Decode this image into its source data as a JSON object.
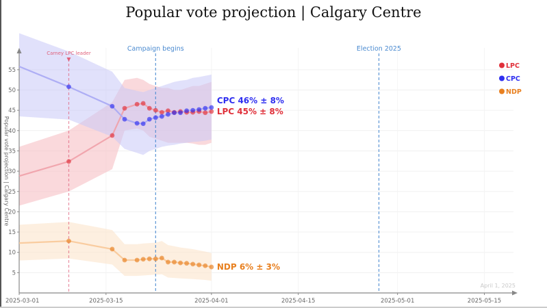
{
  "chart_data": {
    "type": "line",
    "title": "Popular vote projection | Calgary Centre",
    "xlabel": "",
    "ylabel": "Popular vote projection | Calgary Centre",
    "x_range": [
      "2025-03-01",
      "2025-05-20"
    ],
    "ylim": [
      0,
      58
    ],
    "y_ticks": [
      5,
      10,
      15,
      20,
      25,
      30,
      35,
      40,
      45,
      50,
      55
    ],
    "x_ticks": [
      "2025-03-01",
      "2025-03-15",
      "2025-04-01",
      "2025-04-15",
      "2025-05-01",
      "2025-05-15"
    ],
    "grid": true,
    "legend_position": "top-right",
    "annotations": [
      {
        "date": "2025-03-09",
        "label": "Carney LPC leader",
        "color": "#e0607a"
      },
      {
        "date": "2025-03-23",
        "label": "Campaign begins",
        "color": "#4a8ad0"
      },
      {
        "date": "2025-04-28",
        "label": "Election 2025",
        "color": "#4a8ad0"
      }
    ],
    "watermark": "April 1, 2025",
    "dates": [
      "2025-03-01",
      "2025-03-09",
      "2025-03-16",
      "2025-03-18",
      "2025-03-20",
      "2025-03-21",
      "2025-03-22",
      "2025-03-23",
      "2025-03-24",
      "2025-03-25",
      "2025-03-26",
      "2025-03-27",
      "2025-03-28",
      "2025-03-29",
      "2025-03-30",
      "2025-03-31",
      "2025-04-01"
    ],
    "series": [
      {
        "name": "LPC",
        "color": "#e0303a",
        "line_color": "#f0a0a8",
        "band_color": "#f6c0c4",
        "end_label": "LPC 45% ± 8%",
        "values": [
          28.8,
          32.4,
          38.8,
          45.5,
          46.5,
          46.7,
          45.5,
          45.0,
          44.5,
          44.9,
          44.5,
          44.7,
          44.5,
          44.5,
          44.7,
          44.4,
          44.7
        ],
        "upper": [
          36.0,
          40.0,
          47.0,
          52.5,
          53.0,
          52.5,
          51.5,
          51.0,
          50.5,
          50.5,
          50.0,
          50.0,
          50.5,
          51.0,
          51.0,
          51.5,
          52.0
        ],
        "lower": [
          21.5,
          25.0,
          30.5,
          40.0,
          40.5,
          40.0,
          38.5,
          38.0,
          37.5,
          37.0,
          37.0,
          37.0,
          37.0,
          36.8,
          36.5,
          36.5,
          37.0
        ]
      },
      {
        "name": "CPC",
        "color": "#2f2ff0",
        "line_color": "#a8a8f4",
        "band_color": "#c8c8f8",
        "end_label": "CPC 46% ± 8%",
        "values": [
          55.8,
          50.8,
          46.0,
          42.8,
          41.8,
          41.7,
          42.8,
          43.2,
          43.5,
          44.0,
          44.4,
          44.4,
          44.9,
          45.0,
          45.2,
          45.5,
          45.7
        ],
        "upper": [
          64.0,
          59.5,
          54.5,
          50.5,
          49.8,
          49.5,
          50.0,
          50.5,
          51.0,
          51.5,
          52.0,
          52.3,
          52.5,
          53.0,
          53.2,
          53.5,
          53.8
        ],
        "lower": [
          43.5,
          42.7,
          38.5,
          35.5,
          34.5,
          34.0,
          35.0,
          35.5,
          36.0,
          36.3,
          36.5,
          36.8,
          37.0,
          37.2,
          37.3,
          37.5,
          37.8
        ]
      },
      {
        "name": "NDP",
        "color": "#e88020",
        "line_color": "#f8c898",
        "band_color": "#fbe4cc",
        "end_label": "NDP 6% ± 3%",
        "values": [
          12.3,
          12.8,
          10.8,
          8.1,
          8.1,
          8.3,
          8.4,
          8.4,
          8.6,
          7.6,
          7.6,
          7.4,
          7.3,
          7.1,
          6.9,
          6.7,
          6.4
        ],
        "upper": [
          16.8,
          17.5,
          15.5,
          12.0,
          12.0,
          12.2,
          12.3,
          12.4,
          12.8,
          11.8,
          11.5,
          11.2,
          11.0,
          10.8,
          10.5,
          10.2,
          9.8
        ],
        "lower": [
          8.0,
          8.5,
          7.0,
          4.2,
          4.2,
          4.3,
          4.4,
          4.5,
          4.6,
          3.8,
          3.7,
          3.6,
          3.5,
          3.4,
          3.3,
          3.2,
          3.0
        ]
      }
    ]
  }
}
